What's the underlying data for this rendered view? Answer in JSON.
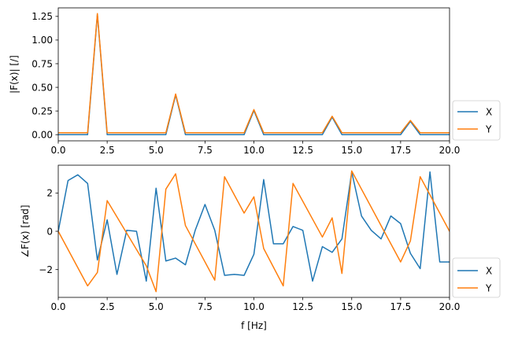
{
  "chart_data": [
    {
      "type": "line",
      "title": "",
      "ylabel": "|F(x)| [/]",
      "xlabel": "",
      "xlim": [
        0,
        20
      ],
      "ylim": [
        -0.065,
        1.34
      ],
      "xticks": [
        "0.0",
        "2.5",
        "5.0",
        "7.5",
        "10.0",
        "12.5",
        "15.0",
        "17.5",
        "20.0"
      ],
      "yticks": [
        "0.00",
        "0.25",
        "0.50",
        "0.75",
        "1.00",
        "1.25"
      ],
      "legend": [
        "X",
        "Y"
      ],
      "legend_position": "outside-lower-right",
      "series": [
        {
          "name": "X",
          "color": "#1f77b4",
          "x": [
            0,
            0.5,
            1,
            1.5,
            2,
            2.5,
            3,
            3.5,
            4,
            4.5,
            5,
            5.5,
            6,
            6.5,
            7,
            7.5,
            8,
            8.5,
            9,
            9.5,
            10,
            10.5,
            11,
            11.5,
            12,
            12.5,
            13,
            13.5,
            14,
            14.5,
            15,
            15.5,
            16,
            16.5,
            17,
            17.5,
            18,
            18.5,
            19,
            19.5,
            20
          ],
          "y": [
            0,
            0,
            0,
            0,
            1.27,
            0,
            0,
            0,
            0,
            0,
            0,
            0,
            0.42,
            0,
            0,
            0,
            0,
            0,
            0,
            0,
            0.255,
            0,
            0,
            0,
            0,
            0,
            0,
            0,
            0.185,
            0,
            0,
            0,
            0,
            0,
            0,
            0,
            0.14,
            0,
            0,
            0,
            0
          ]
        },
        {
          "name": "Y",
          "color": "#ff7f0e",
          "x": [
            0,
            0.5,
            1,
            1.5,
            2,
            2.5,
            3,
            3.5,
            4,
            4.5,
            5,
            5.5,
            6,
            6.5,
            7,
            7.5,
            8,
            8.5,
            9,
            9.5,
            10,
            10.5,
            11,
            11.5,
            12,
            12.5,
            13,
            13.5,
            14,
            14.5,
            15,
            15.5,
            16,
            16.5,
            17,
            17.5,
            18,
            18.5,
            19,
            19.5,
            20
          ],
          "y": [
            0.02,
            0.02,
            0.02,
            0.02,
            1.28,
            0.02,
            0.02,
            0.02,
            0.02,
            0.02,
            0.02,
            0.02,
            0.43,
            0.02,
            0.02,
            0.02,
            0.02,
            0.02,
            0.02,
            0.02,
            0.265,
            0.02,
            0.02,
            0.02,
            0.02,
            0.02,
            0.02,
            0.02,
            0.195,
            0.02,
            0.02,
            0.02,
            0.02,
            0.02,
            0.02,
            0.02,
            0.15,
            0.02,
            0.02,
            0.02,
            0.02
          ]
        }
      ]
    },
    {
      "type": "line",
      "title": "",
      "ylabel": "∠F(x) [rad]",
      "xlabel": "f [Hz]",
      "xlim": [
        0,
        20
      ],
      "ylim": [
        -3.45,
        3.45
      ],
      "xticks": [
        "0.0",
        "2.5",
        "5.0",
        "7.5",
        "10.0",
        "12.5",
        "15.0",
        "17.5",
        "20.0"
      ],
      "yticks": [
        "−2",
        "0",
        "2"
      ],
      "legend": [
        "X",
        "Y"
      ],
      "legend_position": "outside-lower-right",
      "series": [
        {
          "name": "X",
          "color": "#1f77b4",
          "x": [
            0,
            0.5,
            1,
            1.5,
            2,
            2.5,
            3,
            3.5,
            4,
            4.5,
            5,
            5.5,
            6,
            6.5,
            7,
            7.5,
            8,
            8.5,
            9,
            9.5,
            10,
            10.5,
            11,
            11.5,
            12,
            12.5,
            13,
            13.5,
            14,
            14.5,
            15,
            15.5,
            16,
            16.5,
            17,
            17.5,
            18,
            18.5,
            19,
            19.5,
            20
          ],
          "y": [
            0,
            2.65,
            2.95,
            2.5,
            -1.5,
            0.6,
            -2.25,
            0.05,
            0,
            -2.6,
            2.25,
            -1.55,
            -1.4,
            -1.75,
            0.05,
            1.4,
            0.05,
            -2.3,
            -2.25,
            -2.3,
            -1.2,
            2.7,
            -0.65,
            -0.65,
            0.25,
            0.05,
            -2.6,
            -0.8,
            -1.1,
            -0.4,
            3.1,
            0.8,
            0.05,
            -0.4,
            0.8,
            0.4,
            -1.15,
            -1.95,
            3.1,
            -1.6,
            -1.6
          ]
        },
        {
          "name": "Y",
          "color": "#ff7f0e",
          "x": [
            0,
            1.5,
            2,
            2.5,
            4.5,
            5,
            5.5,
            6,
            6.5,
            8,
            8.5,
            9.5,
            10,
            10.5,
            11.5,
            12,
            13.5,
            14,
            14.5,
            15,
            17.5,
            18,
            18.5,
            20
          ],
          "y": [
            0,
            -2.85,
            -2.15,
            1.6,
            -1.8,
            -3.15,
            2.2,
            3,
            0.3,
            -2.55,
            2.85,
            0.95,
            1.8,
            -0.9,
            -2.85,
            2.5,
            -0.3,
            0.7,
            -2.2,
            3.15,
            -1.6,
            -0.5,
            2.85,
            0
          ]
        }
      ]
    }
  ]
}
